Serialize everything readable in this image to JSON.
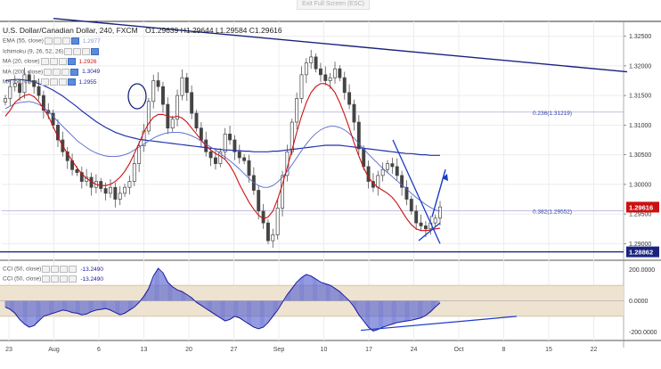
{
  "toolbar": {
    "exit_label": "Exit Full Screen (ESC)"
  },
  "header": {
    "symbol": "U.S. Dollar/Canadian Dollar, 240, FXCM",
    "ohlc": "O1.29639  H1.29644  L1.29584  C1.29616"
  },
  "indicators": [
    {
      "label": "EMA (55, close)",
      "value": "1.2977",
      "color": "#8899cc"
    },
    {
      "label": "Ichimoku (9, 26, 52, 26)",
      "value": "",
      "color": "#8899cc"
    },
    {
      "label": "MA (20, close)",
      "value": "1.2926",
      "color": "#cc1111"
    },
    {
      "label": "MA (200, close)",
      "value": "1.3049",
      "color": "#2222aa"
    },
    {
      "label": "MA (50, close)",
      "value": "1.2955",
      "color": "#2222aa"
    }
  ],
  "cci_legend": [
    {
      "label": "CCI (50, close)",
      "value": "-13.2490"
    },
    {
      "label": "CCI (50, close)",
      "value": "-13.2490"
    }
  ],
  "chart_data": {
    "type": "line",
    "title": "U.S. Dollar/Canadian Dollar, 240, FXCM",
    "timeframe": "240",
    "x_tick_labels": [
      "23",
      "Aug",
      "6",
      "13",
      "20",
      "27",
      "Sep",
      "10",
      "17",
      "24",
      "Oct",
      "8",
      "15",
      "22"
    ],
    "y_tick_labels": [
      "1.32500",
      "1.32000",
      "1.31500",
      "1.31000",
      "1.30500",
      "1.30000",
      "1.29500",
      "1.29000"
    ],
    "ylim": [
      1.2875,
      1.3275
    ],
    "last_price": "1.29616",
    "support_label": "1.28862",
    "support_level": 1.28862,
    "fib_levels": [
      {
        "label": "0.236(1.31219)",
        "value": 1.31219
      },
      {
        "label": "0.382(1.29552)",
        "value": 1.29552
      }
    ],
    "close_series": [
      1.3145,
      1.3165,
      1.317,
      1.3155,
      1.3185,
      1.3175,
      1.3165,
      1.315,
      1.3125,
      1.312,
      1.31,
      1.3075,
      1.3055,
      1.304,
      1.3025,
      1.302,
      1.3005,
      1.3012,
      1.2995,
      1.3005,
      1.2993,
      1.2985,
      1.2995,
      1.2975,
      1.2985,
      1.2995,
      1.3005,
      1.3035,
      1.3065,
      1.309,
      1.314,
      1.3175,
      1.3165,
      1.3135,
      1.3095,
      1.311,
      1.315,
      1.318,
      1.3155,
      1.312,
      1.3095,
      1.3075,
      1.3055,
      1.3045,
      1.3035,
      1.3055,
      1.3085,
      1.3075,
      1.3055,
      1.3045,
      1.304,
      1.3015,
      1.299,
      1.2955,
      1.2935,
      1.2905,
      1.2915,
      1.296,
      1.3015,
      1.3055,
      1.3105,
      1.3145,
      1.3185,
      1.3205,
      1.3215,
      1.3195,
      1.3185,
      1.3175,
      1.318,
      1.3195,
      1.318,
      1.3155,
      1.3135,
      1.3105,
      1.306,
      1.303,
      1.3005,
      1.2995,
      1.3015,
      1.3025,
      1.3035,
      1.303,
      1.3015,
      1.2995,
      1.2975,
      1.2955,
      1.2935,
      1.293,
      1.2925,
      1.2935,
      1.2943,
      1.2962
    ],
    "ma20": [
      1.3115,
      1.3125,
      1.3138,
      1.3145,
      1.315,
      1.3152,
      1.3148,
      1.314,
      1.3128,
      1.3115,
      1.3098,
      1.308,
      1.3065,
      1.3052,
      1.304,
      1.3028,
      1.3018,
      1.301,
      1.3005,
      1.3,
      1.2998,
      1.2998,
      1.3,
      1.3005,
      1.3012,
      1.3022,
      1.3035,
      1.3052,
      1.307,
      1.3088,
      1.3103,
      1.3113,
      1.3118,
      1.3118,
      1.3115,
      1.3113,
      1.3115,
      1.3112,
      1.3105,
      1.3095,
      1.3085,
      1.3075,
      1.3065,
      1.3058,
      1.3052,
      1.3048,
      1.3042,
      1.3032,
      1.3018,
      1.3,
      1.2985,
      1.297,
      1.2958,
      1.2948,
      1.2942,
      1.2945,
      1.2955,
      1.2975,
      1.3,
      1.3028,
      1.3058,
      1.3088,
      1.3115,
      1.3138,
      1.3155,
      1.3165,
      1.317,
      1.317,
      1.3165,
      1.3155,
      1.3138,
      1.3118,
      1.3095,
      1.307,
      1.3048,
      1.3028,
      1.3012,
      1.3002,
      1.2995,
      1.299,
      1.2985,
      1.2978,
      1.2968,
      1.2955,
      1.2942,
      1.2932,
      1.2925,
      1.2922,
      1.2922,
      1.2923,
      1.2925,
      1.2926
    ],
    "ma50": [
      1.3128,
      1.3132,
      1.3136,
      1.3138,
      1.3139,
      1.314,
      1.3138,
      1.3135,
      1.313,
      1.3123,
      1.3115,
      1.3106,
      1.3098,
      1.309,
      1.3082,
      1.3074,
      1.3068,
      1.3062,
      1.3057,
      1.3053,
      1.305,
      1.3048,
      1.3047,
      1.3047,
      1.3048,
      1.305,
      1.3053,
      1.3058,
      1.3063,
      1.3068,
      1.3073,
      1.3078,
      1.3082,
      1.3085,
      1.3087,
      1.3088,
      1.3088,
      1.3087,
      1.3085,
      1.3082,
      1.3078,
      1.3073,
      1.3068,
      1.3063,
      1.3058,
      1.3052,
      1.3046,
      1.304,
      1.3033,
      1.3026,
      1.3018,
      1.301,
      1.3003,
      1.2998,
      1.2995,
      1.2995,
      1.2998,
      1.3004,
      1.3012,
      1.3022,
      1.3033,
      1.3045,
      1.3057,
      1.3068,
      1.3078,
      1.3086,
      1.3092,
      1.3096,
      1.3098,
      1.3098,
      1.3096,
      1.3092,
      1.3086,
      1.3078,
      1.3069,
      1.306,
      1.3051,
      1.3043,
      1.3035,
      1.3027,
      1.302,
      1.3013,
      1.3006,
      1.2999,
      1.2992,
      1.2985,
      1.2978,
      1.2972,
      1.2966,
      1.2961,
      1.2957,
      1.2955
    ],
    "ma200": [
      1.3175,
      1.3176,
      1.3177,
      1.3177,
      1.3176,
      1.3175,
      1.3173,
      1.317,
      1.3167,
      1.3163,
      1.3159,
      1.3154,
      1.3149,
      1.3143,
      1.3137,
      1.3131,
      1.3124,
      1.3118,
      1.3112,
      1.3106,
      1.3101,
      1.3096,
      1.3092,
      1.3088,
      1.3085,
      1.3082,
      1.308,
      1.3078,
      1.3076,
      1.3075,
      1.3074,
      1.3073,
      1.3072,
      1.3071,
      1.307,
      1.3069,
      1.3068,
      1.3067,
      1.3066,
      1.3065,
      1.3064,
      1.3063,
      1.3062,
      1.3061,
      1.306,
      1.3059,
      1.3058,
      1.3058,
      1.3057,
      1.3057,
      1.3056,
      1.3056,
      1.3055,
      1.3055,
      1.3055,
      1.3055,
      1.3056,
      1.3056,
      1.3057,
      1.3058,
      1.3059,
      1.306,
      1.3061,
      1.3062,
      1.3063,
      1.3064,
      1.3065,
      1.3066,
      1.3066,
      1.3066,
      1.3066,
      1.3065,
      1.3064,
      1.3063,
      1.3062,
      1.3061,
      1.306,
      1.3059,
      1.3058,
      1.3057,
      1.3056,
      1.3055,
      1.3054,
      1.3053,
      1.3052,
      1.3052,
      1.3051,
      1.305,
      1.305,
      1.3049,
      1.3049,
      1.3049
    ],
    "cci": {
      "title": "CCI (50, close)",
      "value": "-13.2490",
      "y_tick_labels": [
        "200.0000",
        "0.0000",
        "-200.0000"
      ],
      "ylim": [
        -250,
        250
      ],
      "band": [
        -100,
        100
      ],
      "values": [
        -40,
        -55,
        -80,
        -120,
        -150,
        -170,
        -160,
        -130,
        -100,
        -90,
        -80,
        -70,
        -60,
        -65,
        -75,
        -80,
        -90,
        -85,
        -70,
        -60,
        -55,
        -50,
        -60,
        -75,
        -90,
        -80,
        -60,
        -40,
        -10,
        30,
        80,
        160,
        210,
        180,
        120,
        90,
        70,
        60,
        40,
        20,
        -10,
        -30,
        -50,
        -70,
        -90,
        -110,
        -130,
        -120,
        -100,
        -110,
        -130,
        -150,
        -170,
        -180,
        -170,
        -140,
        -100,
        -60,
        -10,
        40,
        80,
        120,
        150,
        170,
        160,
        140,
        120,
        110,
        100,
        80,
        60,
        30,
        0,
        -40,
        -90,
        -130,
        -170,
        -195,
        -185,
        -170,
        -160,
        -150,
        -140,
        -135,
        -130,
        -125,
        -118,
        -110,
        -95,
        -70,
        -40,
        -13
      ]
    }
  }
}
